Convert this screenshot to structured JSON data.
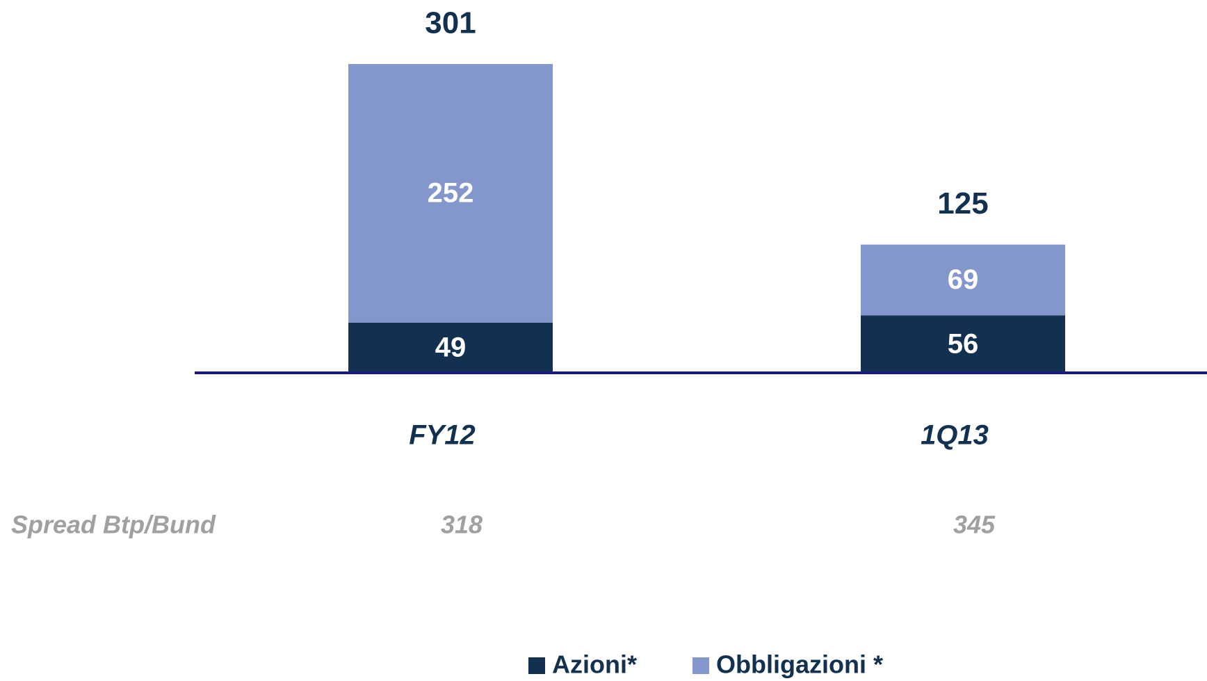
{
  "chart_data": {
    "type": "stacked_bar",
    "categories": [
      "FY12",
      "1Q13"
    ],
    "series": [
      {
        "name": "Azioni*",
        "color": "#12304f",
        "values": [
          49,
          56
        ]
      },
      {
        "name": "Obbligazioni *",
        "color": "#8497cc",
        "values": [
          252,
          69
        ]
      }
    ],
    "totals": [
      301,
      125
    ],
    "spread_row": {
      "label": "Spread Btp/Bund",
      "values": [
        318,
        345
      ]
    }
  }
}
